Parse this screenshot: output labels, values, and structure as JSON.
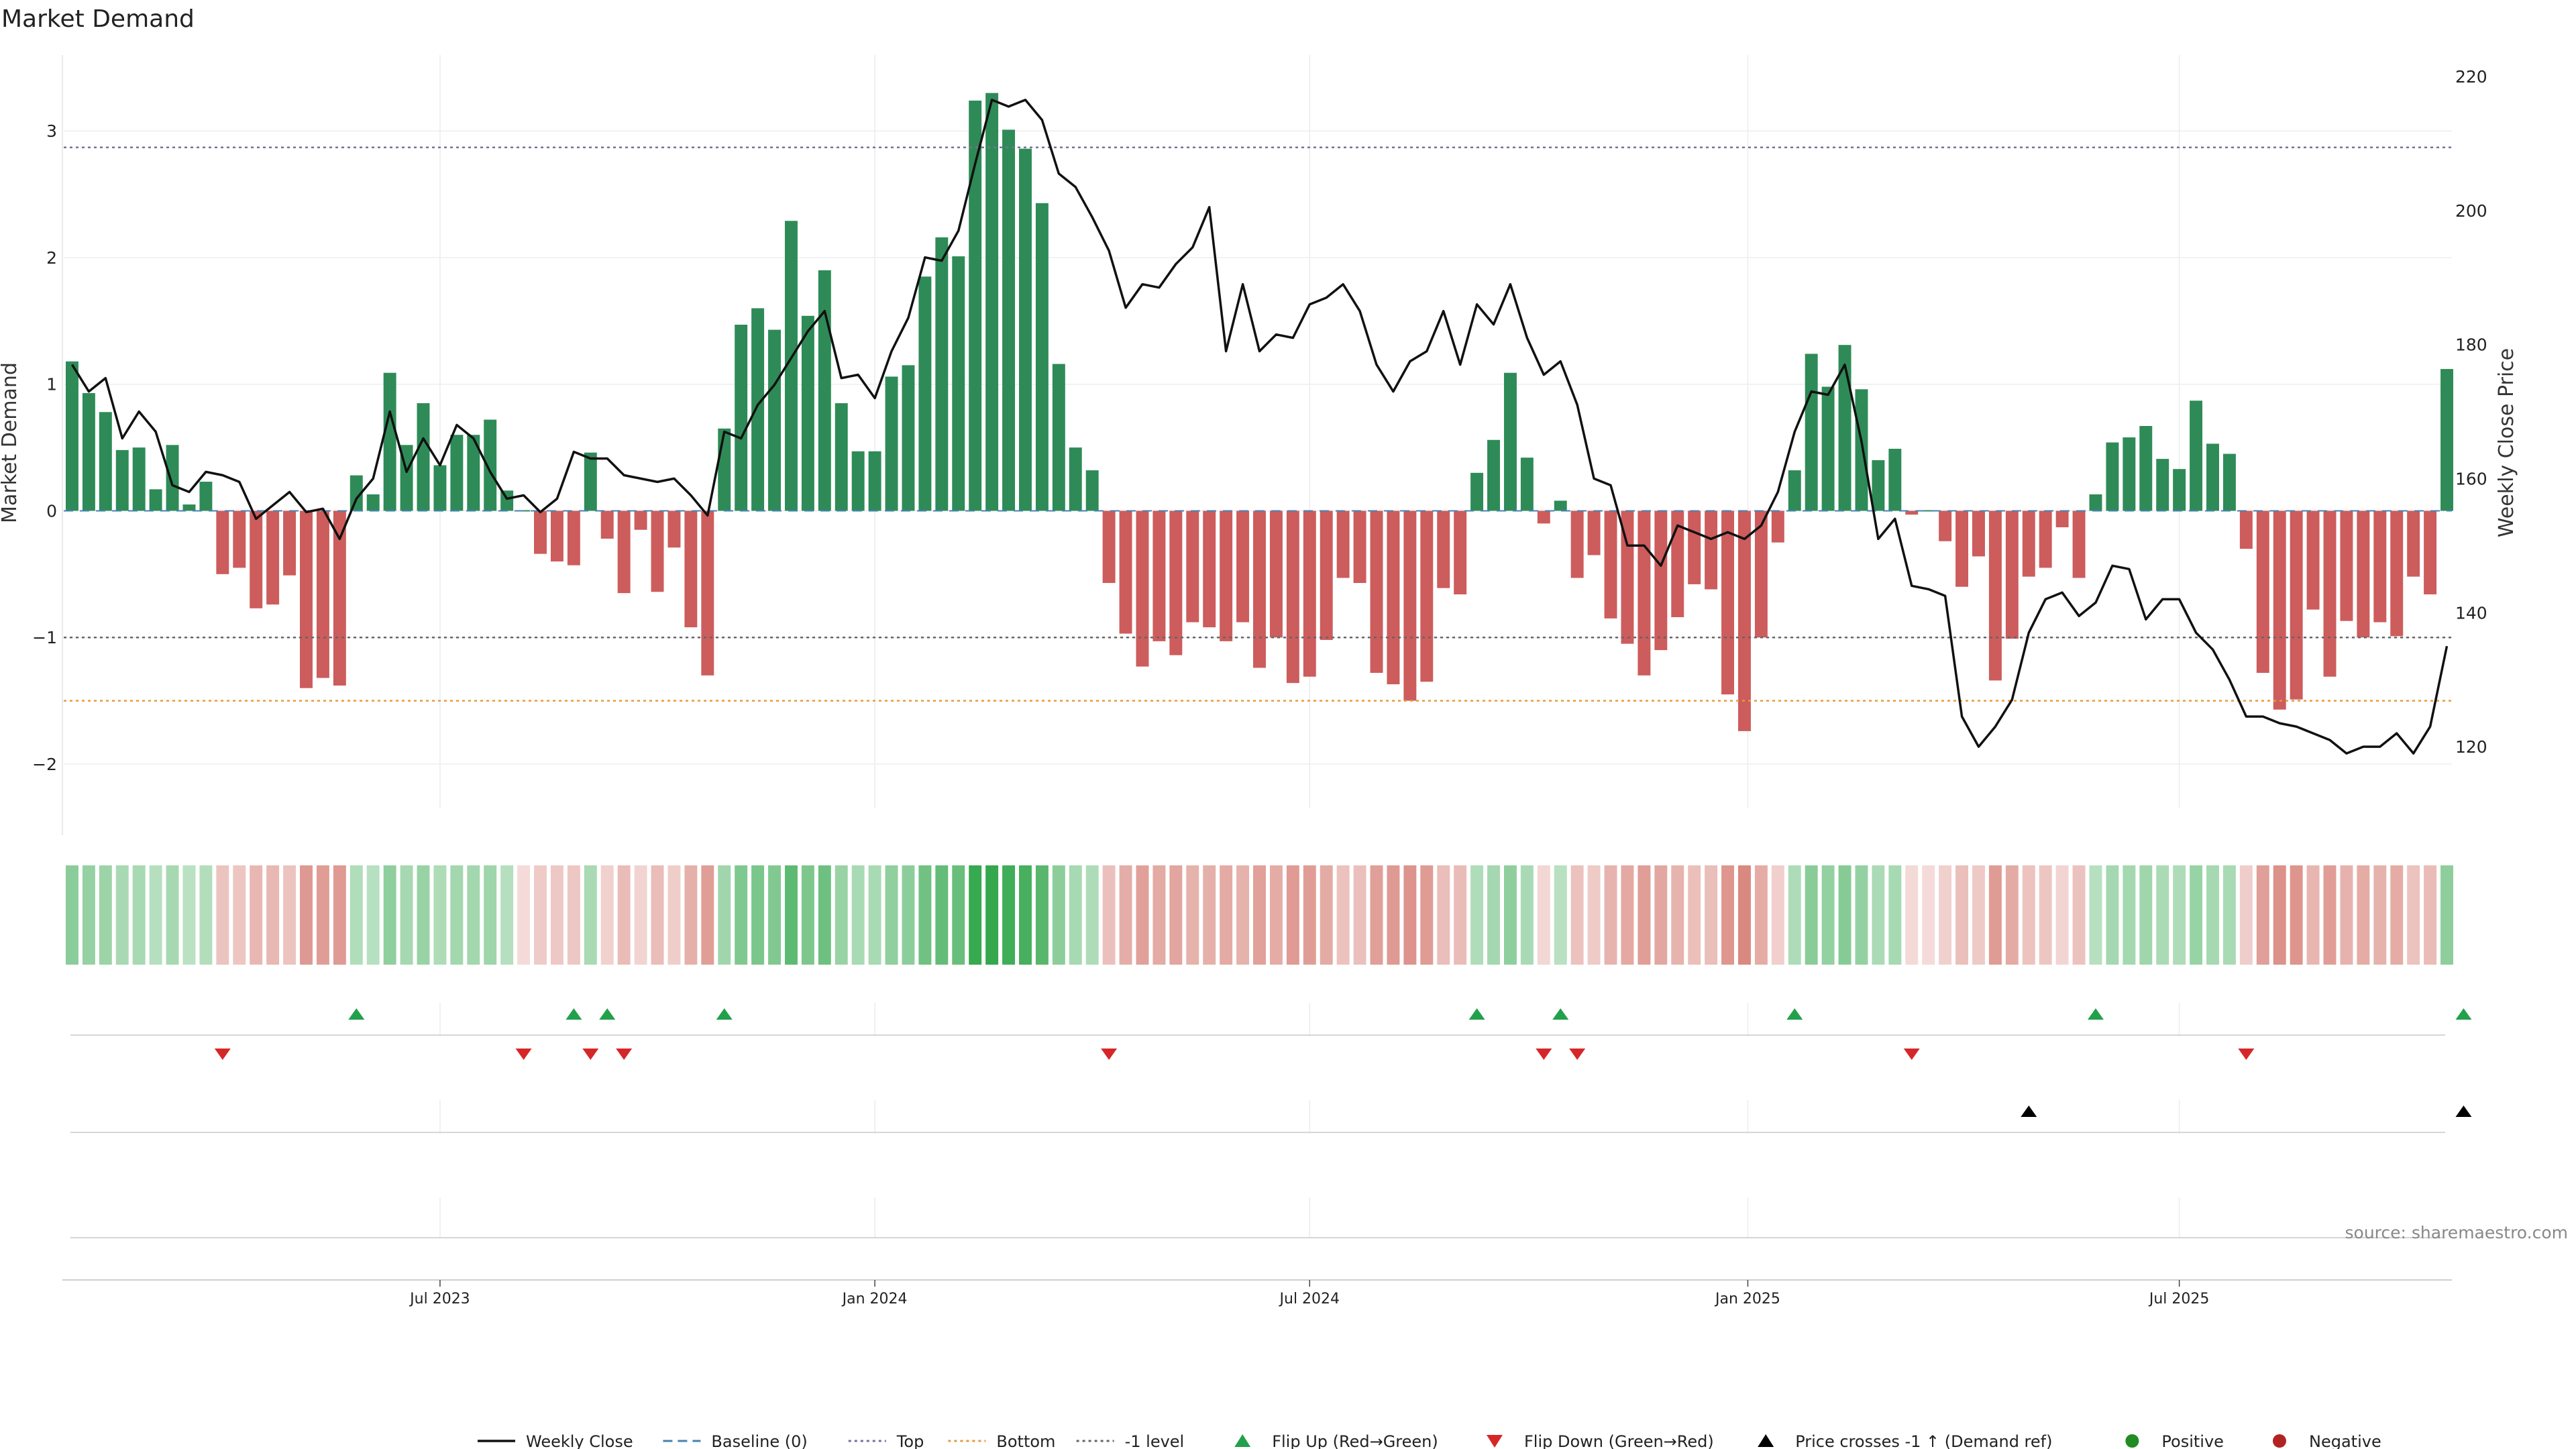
{
  "chart_data": {
    "type": "bar",
    "title": "Market Demand",
    "ylabel": "Market Demand",
    "y2label": "Weekly Close Price",
    "ylim": [
      -2.35,
      3.6
    ],
    "y2lim": [
      110.8,
      223.2
    ],
    "yticks": [
      -2,
      -1,
      0,
      1,
      2,
      3
    ],
    "y2ticks": [
      120,
      140,
      160,
      180,
      200,
      220
    ],
    "xticks": [
      {
        "label": "Jul 2023",
        "index": 22
      },
      {
        "label": "Jan 2024",
        "index": 48
      },
      {
        "label": "Jul 2024",
        "index": 74
      },
      {
        "label": "Jan 2025",
        "index": 100.2
      },
      {
        "label": "Jul 2025",
        "index": 126
      }
    ],
    "reference_lines": {
      "top": 2.87,
      "minus_one": -1.0,
      "bottom": -1.5,
      "baseline": 0
    },
    "colors": {
      "positive": "#2e8b57",
      "negative": "#cd5c5c",
      "price": "#111111",
      "flip_up": "#22a04b",
      "flip_down": "#d62728",
      "cross": "#000000",
      "top_line": "#7a6f9b",
      "bottom_line": "#e89a3c",
      "minus_one_line": "#666666",
      "baseline_line": "#4682b4",
      "dot_positive": "#228b22",
      "dot_negative": "#b22222"
    },
    "demand": [
      1.18,
      0.93,
      0.78,
      0.48,
      0.5,
      0.17,
      0.52,
      0.05,
      0.23,
      -0.5,
      -0.45,
      -0.77,
      -0.74,
      -0.51,
      -1.4,
      -1.32,
      -1.38,
      0.28,
      0.13,
      1.09,
      0.52,
      0.85,
      0.36,
      0.6,
      0.6,
      0.72,
      0.16,
      0,
      -0.34,
      -0.4,
      -0.43,
      0.46,
      -0.22,
      -0.65,
      -0.15,
      -0.64,
      -0.29,
      -0.92,
      -1.3,
      0.65,
      1.47,
      1.6,
      1.43,
      2.29,
      1.54,
      1.9,
      0.85,
      0.47,
      0.47,
      1.06,
      1.15,
      1.85,
      2.16,
      2.01,
      3.24,
      3.3,
      3.01,
      2.86,
      2.43,
      1.16,
      0.5,
      0.32,
      -0.57,
      -0.97,
      -1.23,
      -1.03,
      -1.14,
      -0.88,
      -0.92,
      -1.03,
      -0.88,
      -1.24,
      -1.0,
      -1.36,
      -1.31,
      -1.02,
      -0.53,
      -0.57,
      -1.28,
      -1.37,
      -1.5,
      -1.35,
      -0.61,
      -0.66,
      0.3,
      0.56,
      1.09,
      0.42,
      -0.1,
      0.08,
      -0.53,
      -0.35,
      -0.85,
      -1.05,
      -1.3,
      -1.1,
      -0.84,
      -0.58,
      -0.62,
      -1.45,
      -1.74,
      -1.0,
      -0.25,
      0.32,
      1.24,
      0.98,
      1.31,
      0.96,
      0.4,
      0.49,
      -0.03,
      0,
      -0.24,
      -0.6,
      -0.36,
      -1.34,
      -1.01,
      -0.52,
      -0.45,
      -0.13,
      -0.53,
      0.13,
      0.54,
      0.58,
      0.67,
      0.41,
      0.33,
      0.87,
      0.53,
      0.45,
      -0.3,
      -1.28,
      -1.57,
      -1.49,
      -0.78,
      -1.31,
      -0.87,
      -1.0,
      -0.88,
      -0.99,
      -0.52,
      -0.66,
      1.12
    ],
    "price": [
      177,
      173,
      175,
      166,
      170,
      167,
      159,
      158,
      161,
      160.5,
      159.5,
      154,
      156,
      158,
      155,
      155.5,
      151,
      157,
      160,
      170,
      161,
      166,
      162,
      168,
      166,
      161,
      157,
      157.5,
      155,
      157,
      164,
      163,
      163,
      160.5,
      160,
      159.5,
      160,
      157.5,
      154.5,
      167,
      166,
      171,
      174,
      178,
      182,
      185,
      175,
      175.5,
      172,
      179,
      184,
      193,
      192.5,
      197,
      207,
      216.5,
      215.5,
      216.5,
      213.5,
      205.5,
      203.5,
      199,
      194,
      185.5,
      189,
      188.5,
      192,
      194.5,
      200.5,
      179,
      189,
      179,
      181.5,
      181,
      186,
      187,
      189,
      185,
      177,
      173,
      177.5,
      179,
      185,
      177,
      186,
      183,
      189,
      181,
      175.5,
      177.5,
      171,
      160,
      159,
      150,
      150,
      147,
      153,
      152,
      151,
      152,
      151,
      153,
      158,
      167,
      173,
      172.5,
      177,
      165.5,
      151,
      154,
      144,
      143.5,
      142.5,
      124.5,
      120,
      123,
      127,
      137,
      142,
      143,
      139.5,
      141.5,
      147,
      146.5,
      139,
      142,
      142,
      137,
      134.5,
      130,
      124.5,
      124.5,
      123.5,
      123,
      122,
      121,
      119,
      120,
      120,
      122,
      119,
      123,
      135
    ],
    "flip_up_indices": [
      17,
      30,
      32,
      39,
      84,
      89,
      103,
      121,
      143
    ],
    "flip_down_indices": [
      9,
      27,
      31,
      33,
      62,
      88,
      90,
      110,
      130
    ],
    "cross_up_indices": [
      117,
      143
    ],
    "legend": [
      {
        "label": "Weekly Close",
        "kind": "line-solid"
      },
      {
        "label": "Baseline (0)",
        "kind": "line-dashed"
      },
      {
        "label": "Top",
        "kind": "line-dotted-top"
      },
      {
        "label": "Bottom",
        "kind": "line-dotted-bottom"
      },
      {
        "label": "-1 level",
        "kind": "line-dotted-minus"
      },
      {
        "label": "Flip Up (Red→Green)",
        "kind": "tri-up-green"
      },
      {
        "label": "Flip Down (Green→Red)",
        "kind": "tri-down-red"
      },
      {
        "label": "Price crosses -1 ↑ (Demand ref)",
        "kind": "tri-up-black"
      },
      {
        "label": "Positive",
        "kind": "dot-green"
      },
      {
        "label": "Negative",
        "kind": "dot-red"
      }
    ],
    "source": "source: sharemaestro.com"
  }
}
